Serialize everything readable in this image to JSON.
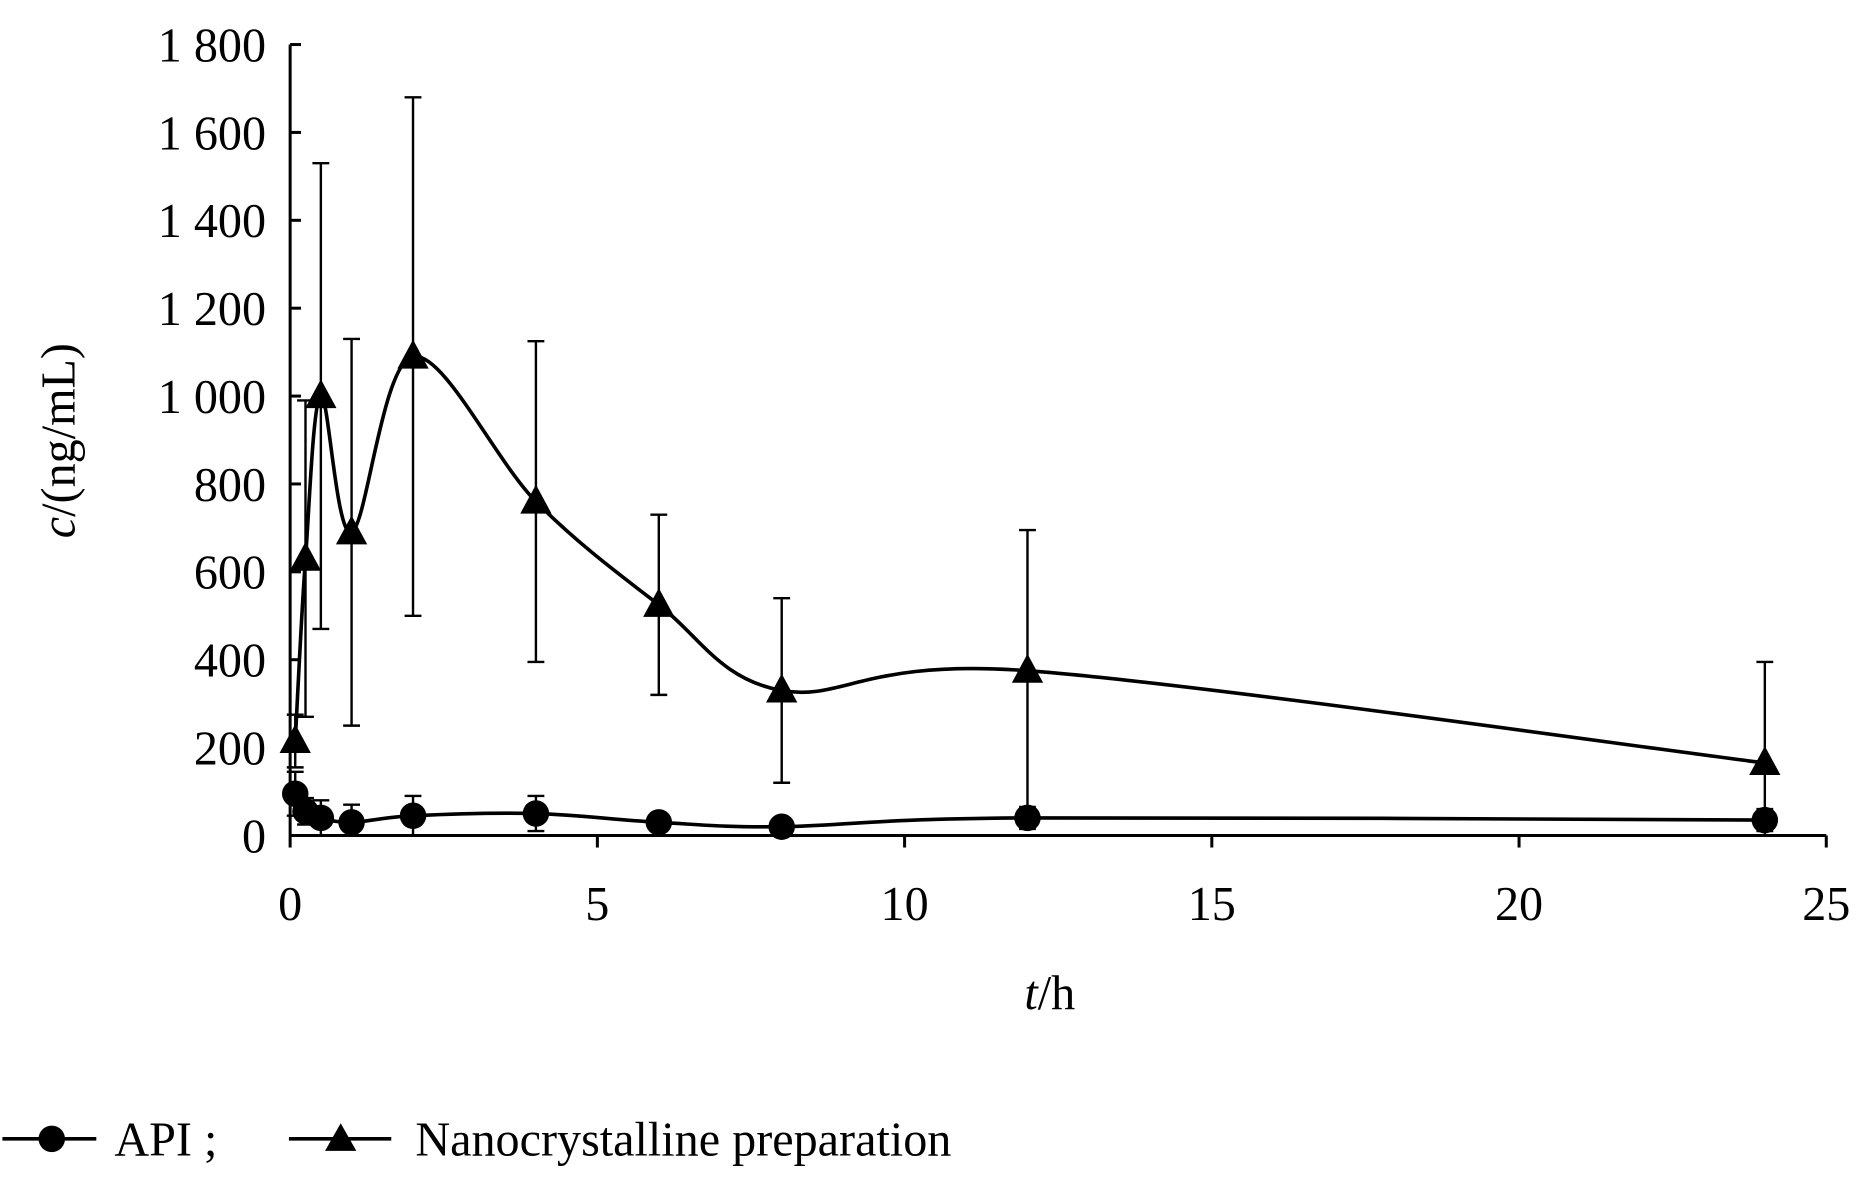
{
  "chart_data": {
    "type": "line",
    "xlabel_italic": "t",
    "xlabel_rest": "/h",
    "ylabel_italic": "c",
    "ylabel_rest": "/(ng/mL)",
    "xlim": [
      0,
      25
    ],
    "ylim": [
      0,
      1800
    ],
    "xticks": [
      0,
      5,
      10,
      15,
      20,
      25
    ],
    "xtick_labels": [
      "0",
      "5",
      "10",
      "15",
      "20",
      "25"
    ],
    "yticks": [
      0,
      200,
      400,
      600,
      800,
      1000,
      1200,
      1400,
      1600,
      1800
    ],
    "ytick_labels": [
      "0",
      "200",
      "400",
      "600",
      "800",
      "1 000",
      "1 200",
      "1 400",
      "1 600",
      "1 800"
    ],
    "grid": false,
    "legend_placement": "bottom-left",
    "x": [
      0.083,
      0.25,
      0.5,
      1,
      2,
      4,
      6,
      8,
      12,
      24
    ],
    "series": [
      {
        "name": "API ;",
        "marker": "circle",
        "values": [
          95,
          55,
          40,
          30,
          45,
          50,
          30,
          20,
          40,
          35
        ],
        "errors": [
          50,
          30,
          40,
          40,
          45,
          40,
          20,
          10,
          25,
          25
        ]
      },
      {
        "name": "Nanocrystalline preparation",
        "marker": "triangle",
        "values": [
          215,
          630,
          1000,
          690,
          1090,
          760,
          525,
          330,
          375,
          165
        ],
        "errors": [
          60,
          360,
          530,
          440,
          590,
          365,
          205,
          210,
          320,
          230
        ]
      }
    ]
  }
}
